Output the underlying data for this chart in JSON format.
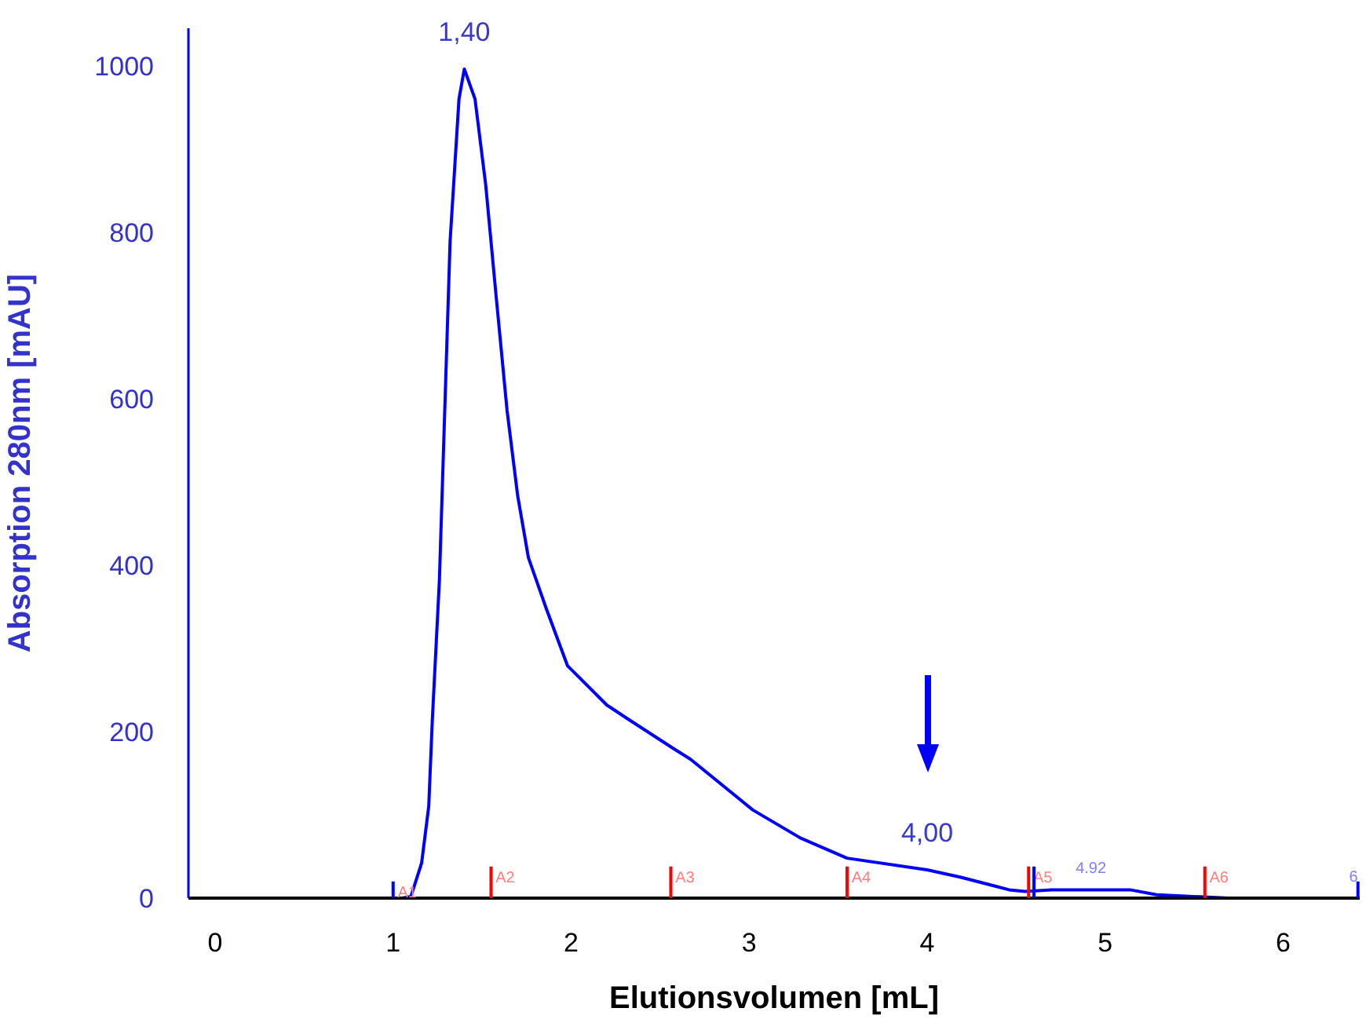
{
  "chart_data": {
    "type": "line",
    "xlabel": "Elutionsvolumen [mL]",
    "ylabel": "Absorption 280nm [mAU]",
    "xlim": [
      -0.15,
      6.43
    ],
    "xticks": [
      0,
      1,
      2,
      3,
      4,
      5,
      6
    ],
    "ylim": [
      0,
      1045
    ],
    "yticks": [
      0,
      200,
      400,
      600,
      800,
      1000
    ],
    "grid": false,
    "legend": false,
    "marker": "none",
    "line_style": "solid",
    "series": [
      {
        "color": "#0000ff",
        "x": [
          0,
          1.0,
          1.05,
          1.1,
          1.16,
          1.2,
          1.22,
          1.26,
          1.29,
          1.32,
          1.37,
          1.4,
          1.46,
          1.52,
          1.58,
          1.64,
          1.7,
          1.76,
          1.86,
          1.98,
          2.2,
          2.32,
          2.58,
          2.67,
          3.02,
          3.29,
          3.55,
          4.0,
          4.19,
          4.46,
          4.55,
          4.7,
          4.92,
          5.14,
          5.29,
          5.69,
          5.99,
          6.43
        ],
        "values": [
          0,
          0,
          0,
          2,
          42,
          110,
          213,
          382,
          586,
          789,
          960,
          996,
          960,
          857,
          720,
          586,
          483,
          409,
          348,
          279,
          232,
          215,
          179,
          167,
          106,
          72,
          48,
          34,
          25,
          10,
          8,
          10,
          10,
          10,
          4,
          0,
          0,
          0
        ]
      },
      {
        "type": "bar",
        "color": "#ff0000",
        "x": [
          1.55,
          2.56,
          3.55,
          4.57,
          5.56
        ],
        "values": [
          38,
          38,
          38,
          38,
          38
        ],
        "value_labels": [
          "A2",
          "A3",
          "A4",
          "A5",
          "A6"
        ]
      },
      {
        "type": "bar",
        "color": "#0000ff",
        "x": [
          1.0,
          4.6,
          6.42
        ],
        "values": [
          20,
          38,
          20
        ],
        "value_labels": [
          "A1",
          null,
          null
        ]
      }
    ],
    "annotations": [
      {
        "text": "1,40",
        "x": 1.4,
        "y": 996
      },
      {
        "text": "4,00",
        "x": 4.0,
        "y": 34
      },
      {
        "text": "4.92",
        "x": 4.92,
        "y": 10
      },
      {
        "text": "6",
        "x": 6.43,
        "y": 0
      }
    ]
  }
}
